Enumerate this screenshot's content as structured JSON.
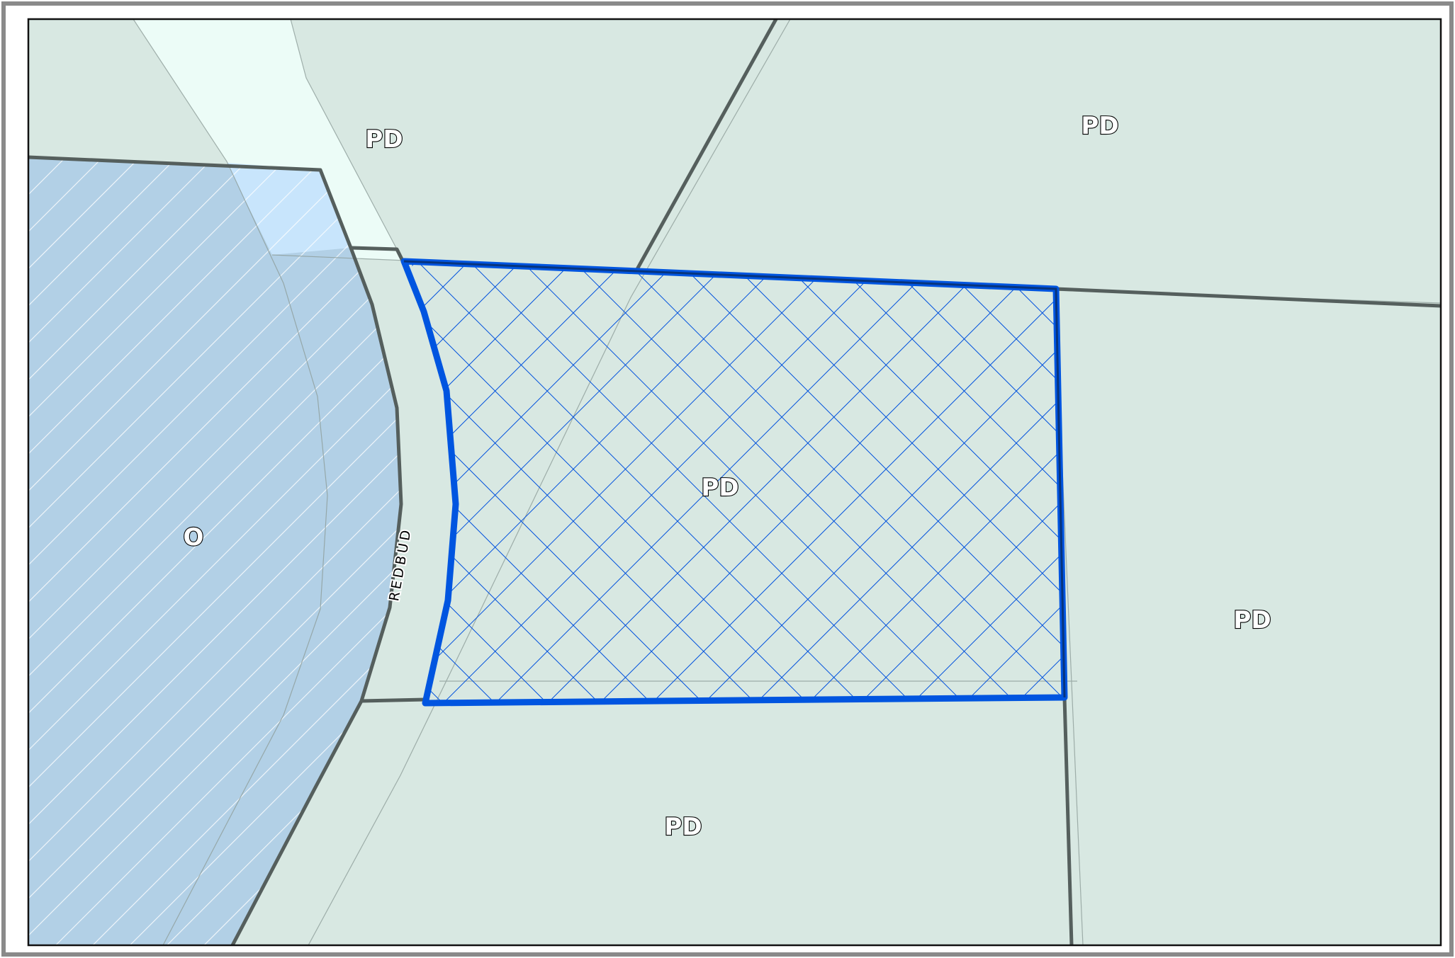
{
  "map": {
    "zones": [
      {
        "label": "PD",
        "role": "parcel-north-west"
      },
      {
        "label": "PD",
        "role": "parcel-north-east"
      },
      {
        "label": "PD",
        "role": "parcel-selected"
      },
      {
        "label": "PD",
        "role": "parcel-east"
      },
      {
        "label": "PD",
        "role": "parcel-south"
      },
      {
        "label": "O",
        "role": "office-district"
      }
    ],
    "street": {
      "name": "REDBUD"
    },
    "colors": {
      "pd_fill": "#d8e8e2",
      "light_strip": "#ecfcf7",
      "office_fill": "#b2d0e6",
      "office_light": "#c8e5fc",
      "boundary": "#555f5d",
      "selected_outline": "#0055e0",
      "hatch": "#0050dd"
    }
  }
}
